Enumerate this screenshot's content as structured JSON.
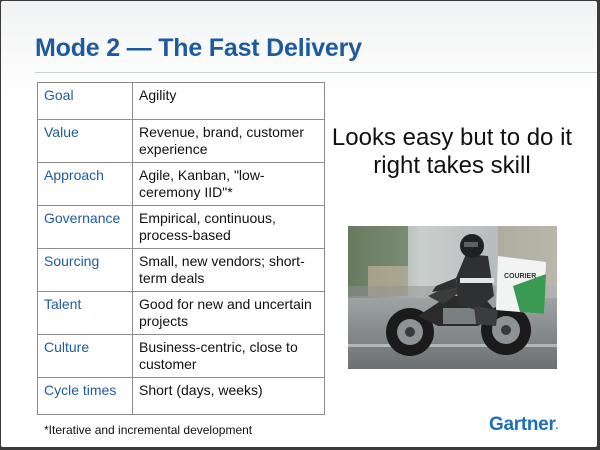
{
  "slide": {
    "title": "Mode 2 — The Fast Delivery",
    "callout": "Looks easy but to do it right takes skill",
    "footnote": "*Iterative and incremental development",
    "logo": "Gartner",
    "logo_dot": "."
  },
  "table": {
    "rows": [
      {
        "key": "Goal",
        "value": "Agility"
      },
      {
        "key": "Value",
        "value": "Revenue, brand, customer experience"
      },
      {
        "key": "Approach",
        "value": "Agile, Kanban, \"low-ceremony IID\"*"
      },
      {
        "key": "Governance",
        "value": "Empirical, continuous, process-based"
      },
      {
        "key": "Sourcing",
        "value": "Small, new vendors; short-term deals"
      },
      {
        "key": "Talent",
        "value": "Good for new and uncertain projects"
      },
      {
        "key": "Culture",
        "value": "Business-centric, close to customer"
      },
      {
        "key": "Cycle times",
        "value": "Short (days, weeks)"
      }
    ]
  },
  "photo": {
    "box_label": "COURIER"
  },
  "colors": {
    "brand_blue": "#1e5b9e",
    "logo_blue": "#1e6fb5",
    "border": "#8c8c8c",
    "accent_green": "#3a9a52"
  }
}
